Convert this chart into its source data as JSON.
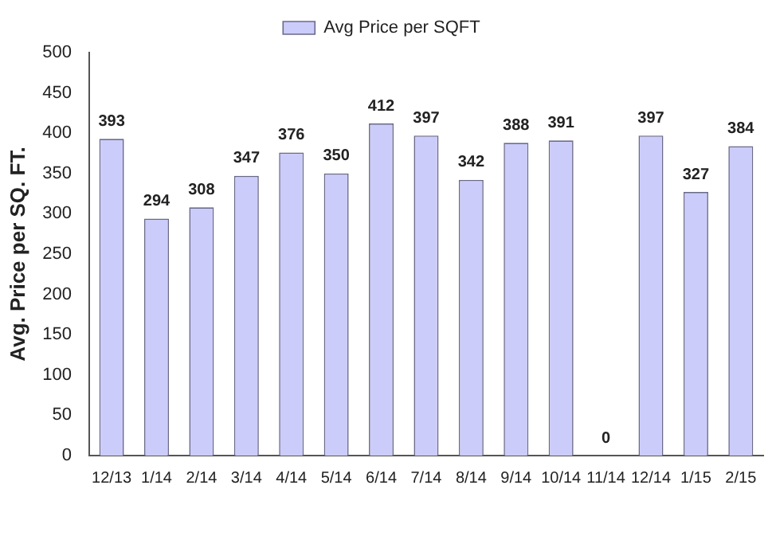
{
  "chart_data": {
    "type": "bar",
    "ylabel": "Avg. Price per SQ. FT.",
    "categories": [
      "12/13",
      "1/14",
      "2/14",
      "3/14",
      "4/14",
      "5/14",
      "6/14",
      "7/14",
      "8/14",
      "9/14",
      "10/14",
      "11/14",
      "12/14",
      "1/15",
      "2/15"
    ],
    "series": [
      {
        "name": "Avg Price per SQFT",
        "color": "#ccccfa",
        "values": [
          393,
          294,
          308,
          347,
          376,
          350,
          412,
          397,
          342,
          388,
          391,
          0,
          397,
          327,
          384
        ]
      }
    ],
    "ylim": [
      0,
      500
    ],
    "yticks": [
      0,
      50,
      100,
      150,
      200,
      250,
      300,
      350,
      400,
      450,
      500
    ],
    "grid": false,
    "legend": "top",
    "data_labels": true
  }
}
